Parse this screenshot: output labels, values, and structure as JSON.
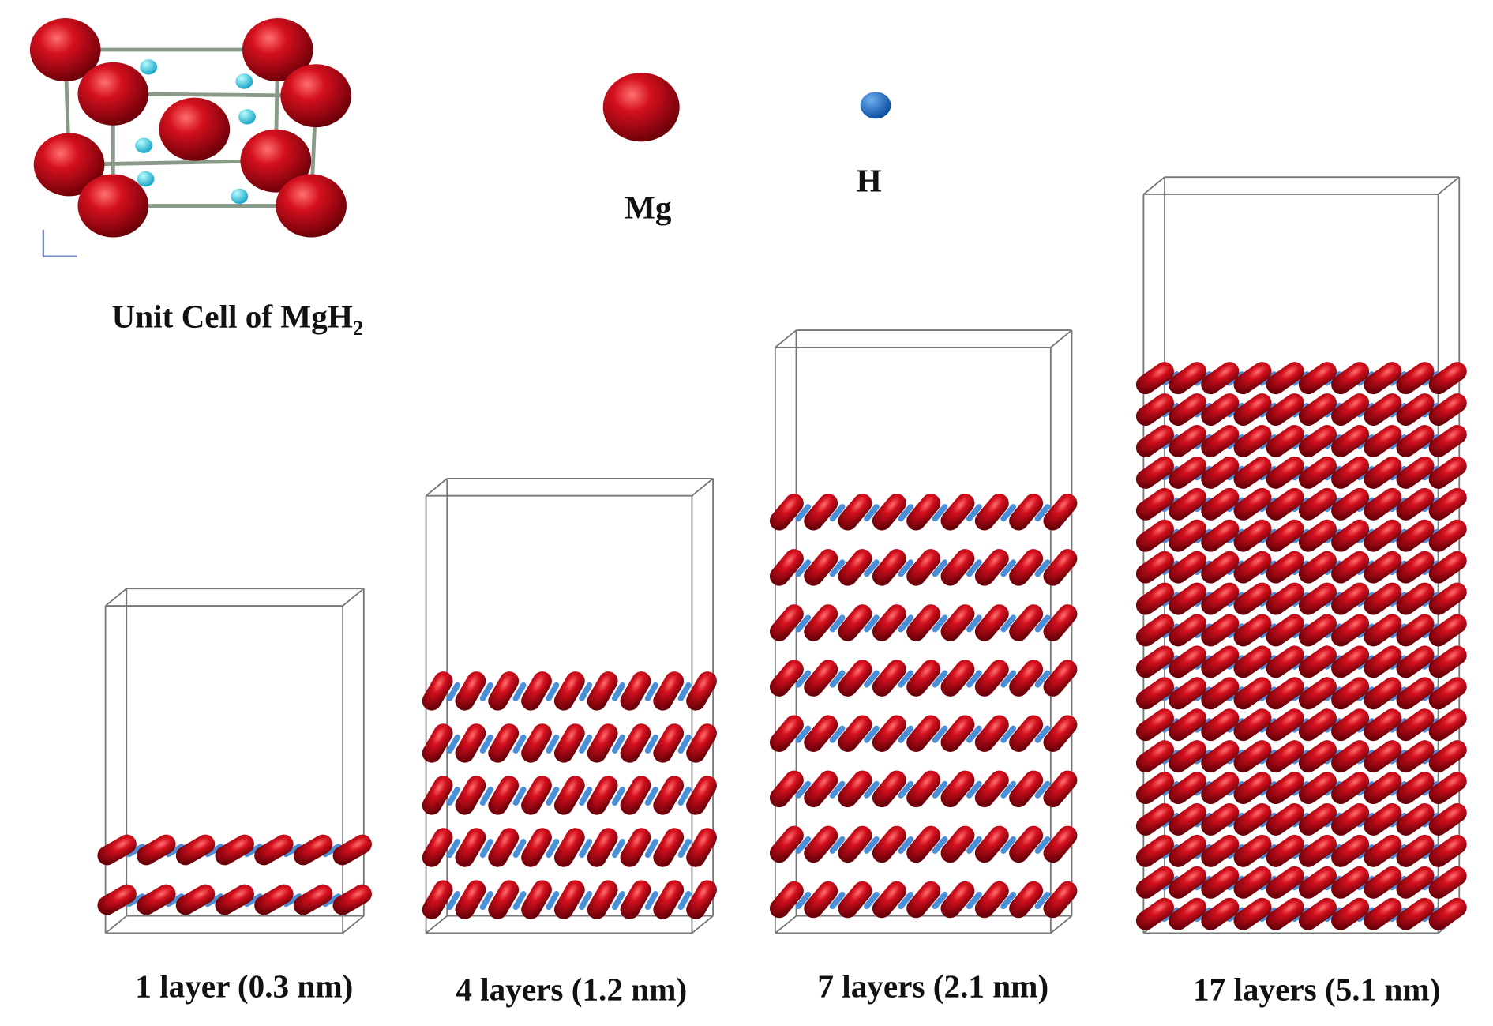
{
  "unit_cell": {
    "label": "Unit Cell of MgH",
    "subscript": "2"
  },
  "legend": [
    {
      "label": "Mg"
    },
    {
      "label": "H"
    }
  ],
  "panels": [
    {
      "label": "1 layer (0.3 nm)"
    },
    {
      "label": "4 layers (1.2 nm)"
    },
    {
      "label": "7 layers (2.1 nm)"
    },
    {
      "label": "17 layers (5.1 nm)"
    }
  ]
}
